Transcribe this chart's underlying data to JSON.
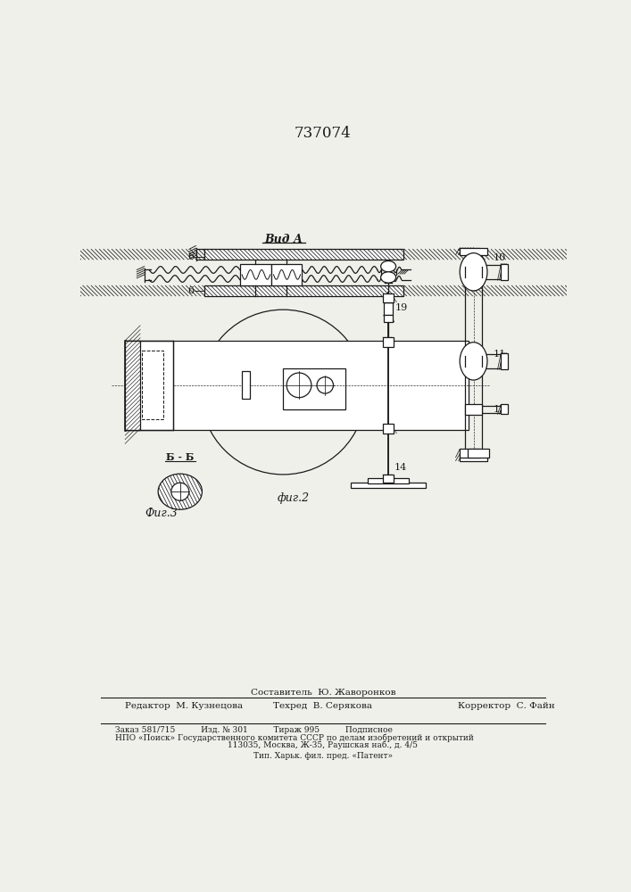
{
  "title": "737074",
  "bg": "#f0f0eb",
  "lc": "#1a1a1a",
  "view_label": "Вид А",
  "fig2_label": "фиг.2",
  "fig3_label": "Фиг.3",
  "bb_label": "Б - Б",
  "footer1": "Составитель  Ю. Жаворонков",
  "footer2l": "Редактор  М. Кузнецова",
  "footer2m": "Техред  В. Серякова",
  "footer2r": "Корректор  С. Файн",
  "footer3": "Заказ 581/715          Изд. № 301          Тираж 995          Подписное",
  "footer4": "НПО «Поиск» Государственного комитета СССР по делам изобретений и открытий",
  "footer5": "113035, Москва, Ж-35, Раушская наб., д. 4/5",
  "footer6": "Тип. Харьк. фил. пред. «Патент»"
}
